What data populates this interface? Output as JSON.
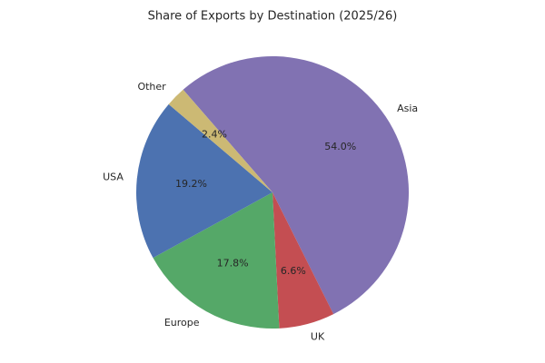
{
  "chart_data": {
    "type": "pie",
    "title": "Share of Exports by Destination (2025/26)",
    "categories": [
      "Asia",
      "UK",
      "Europe",
      "USA",
      "Other"
    ],
    "values": [
      54.0,
      6.6,
      17.8,
      19.2,
      2.4
    ],
    "value_labels": [
      "54.0%",
      "6.6%",
      "17.8%",
      "19.2%",
      "2.4%"
    ],
    "colors": [
      "#8172b2",
      "#c44e52",
      "#55a868",
      "#4c72b0",
      "#ccb974"
    ]
  }
}
